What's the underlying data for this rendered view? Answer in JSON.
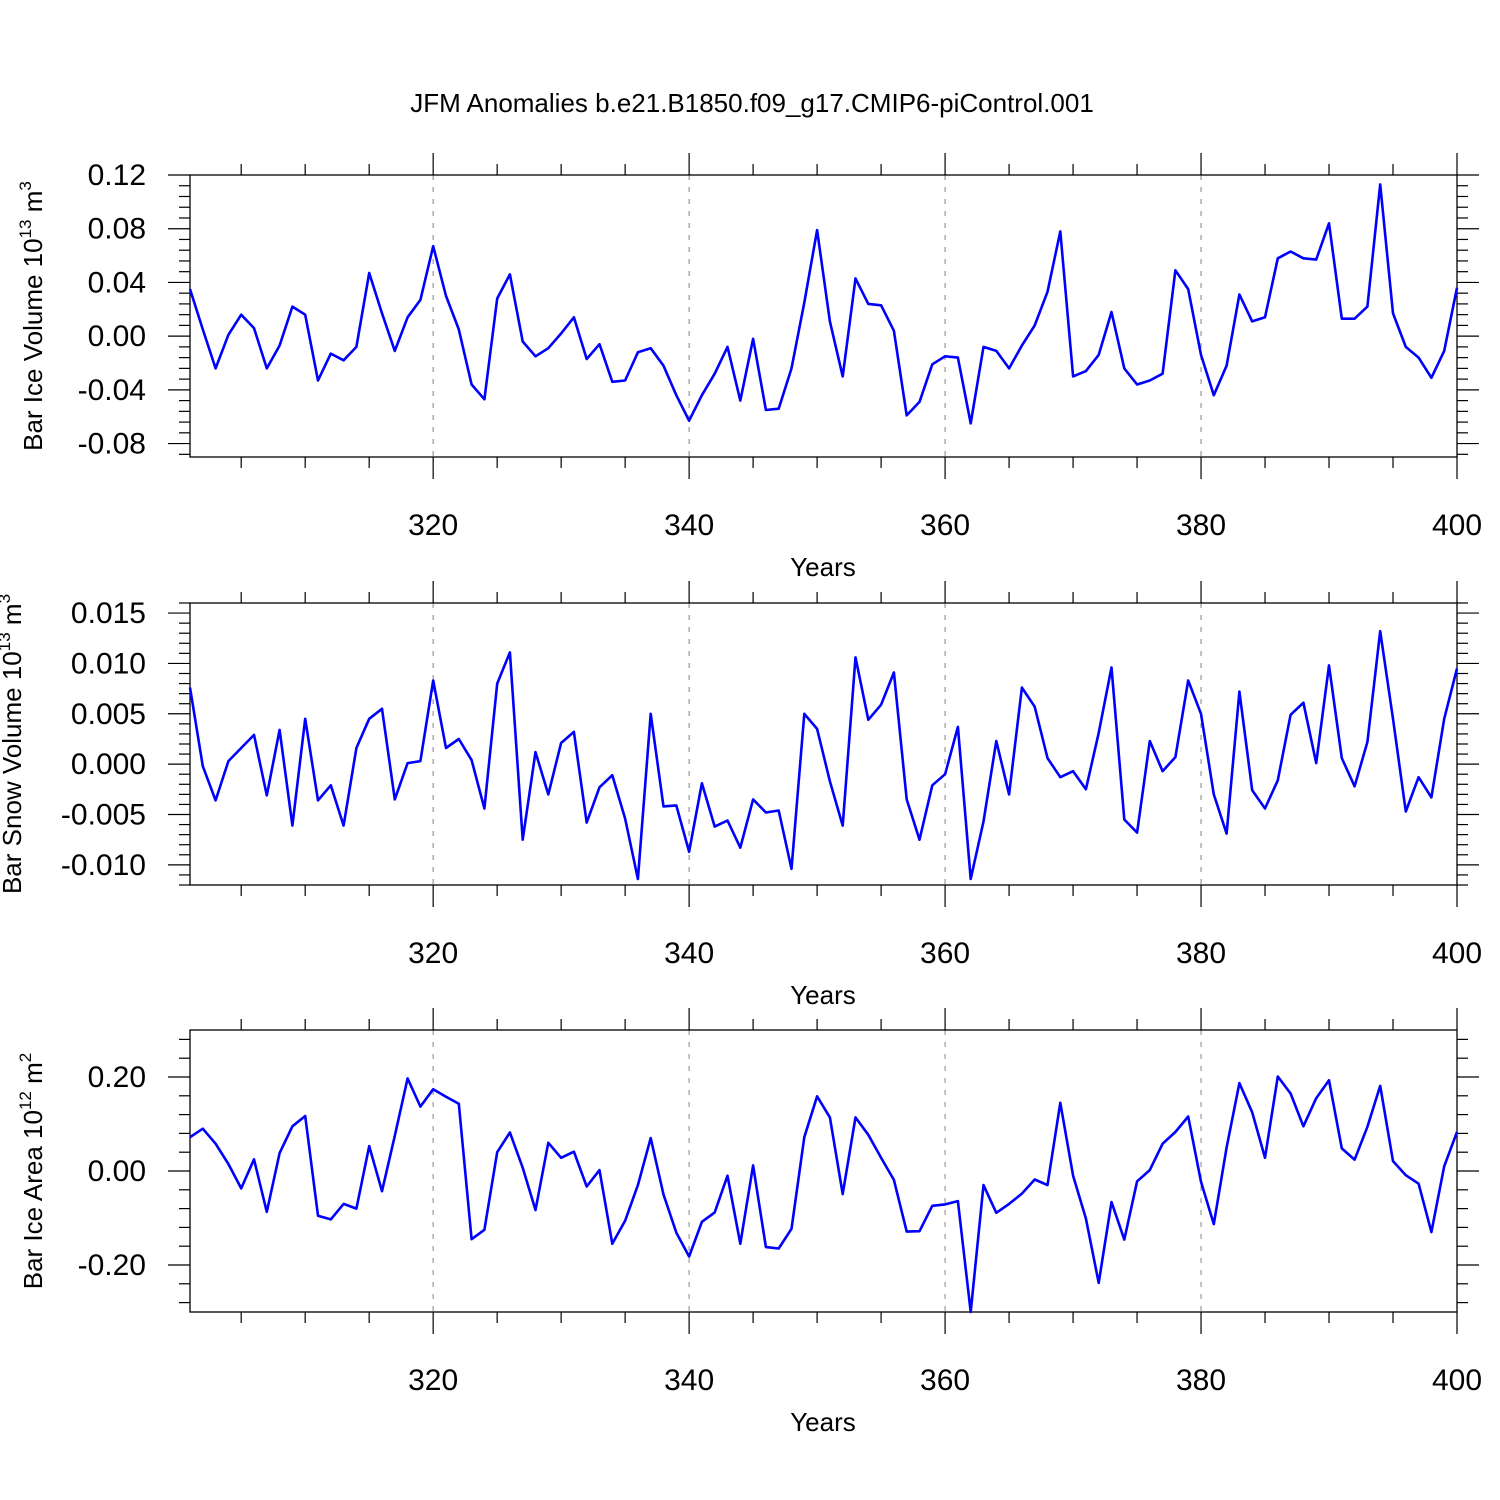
{
  "figure": {
    "title": "JFM Anomalies b.e21.B1850.f09_g17.CMIP6-piControl.001"
  },
  "colors": {
    "line": "#0000ff",
    "axis": "#000000",
    "grid": "#9a9a9a"
  },
  "chart_data": [
    {
      "type": "line",
      "ylabel": "Bar Ice Volume 10",
      "ylabel_sup": "13",
      "ylabel_unit": " m",
      "ylabel_unit_sup": "3",
      "xlabel": "Years",
      "xlim": [
        301,
        400
      ],
      "ylim": [
        -0.09,
        0.12
      ],
      "xticks": [
        320,
        340,
        360,
        380,
        400
      ],
      "xtick_labels": [
        "320",
        "340",
        "360",
        "380",
        "400"
      ],
      "yticks": [
        -0.08,
        -0.04,
        0.0,
        0.04,
        0.08,
        0.12
      ],
      "ytick_labels": [
        "-0.08",
        "-0.04",
        "0.00",
        "0.04",
        "0.08",
        "0.12"
      ],
      "grid": "vertical dashed at major x ticks",
      "series": [
        {
          "x_start": 301,
          "values": [
            0.035,
            0.005,
            -0.024,
            0.001,
            0.016,
            0.006,
            -0.024,
            -0.007,
            0.022,
            0.016,
            -0.033,
            -0.013,
            -0.018,
            -0.008,
            0.047,
            0.017,
            -0.011,
            0.014,
            0.027,
            0.067,
            0.03,
            0.005,
            -0.036,
            -0.047,
            0.028,
            0.046,
            -0.004,
            -0.015,
            -0.009,
            0.002,
            0.014,
            -0.017,
            -0.006,
            -0.034,
            -0.033,
            -0.012,
            -0.009,
            -0.022,
            -0.044,
            -0.063,
            -0.044,
            -0.028,
            -0.008,
            -0.048,
            -0.002,
            -0.055,
            -0.054,
            -0.024,
            0.025,
            0.079,
            0.011,
            -0.03,
            0.043,
            0.024,
            0.023,
            0.004,
            -0.059,
            -0.049,
            -0.021,
            -0.015,
            -0.016,
            -0.065,
            -0.008,
            -0.011,
            -0.024,
            -0.007,
            0.008,
            0.033,
            0.078,
            -0.03,
            -0.026,
            -0.014,
            0.018,
            -0.024,
            -0.036,
            -0.033,
            -0.028,
            0.049,
            0.035,
            -0.014,
            -0.044,
            -0.022,
            0.031,
            0.011,
            0.014,
            0.058,
            0.063,
            0.058,
            0.057,
            0.084,
            0.013,
            0.013,
            0.022,
            0.113,
            0.017,
            -0.008,
            -0.016,
            -0.031,
            -0.011,
            0.036
          ]
        }
      ]
    },
    {
      "type": "line",
      "ylabel": "Bar Snow Volume 10",
      "ylabel_sup": "13",
      "ylabel_unit": " m",
      "ylabel_unit_sup": "3",
      "xlabel": "Years",
      "xlim": [
        301,
        400
      ],
      "ylim": [
        -0.012,
        0.016
      ],
      "xticks": [
        320,
        340,
        360,
        380,
        400
      ],
      "xtick_labels": [
        "320",
        "340",
        "360",
        "380",
        "400"
      ],
      "yticks": [
        -0.01,
        -0.005,
        0.0,
        0.005,
        0.01,
        0.015
      ],
      "ytick_labels": [
        "-0.010",
        "-0.005",
        "0.000",
        "0.005",
        "0.010",
        "0.015"
      ],
      "grid": "vertical dashed at major x ticks",
      "series": [
        {
          "x_start": 301,
          "values": [
            0.0076,
            -0.0002,
            -0.0036,
            0.0003,
            0.0016,
            0.0029,
            -0.0031,
            0.0034,
            -0.0061,
            0.0045,
            -0.0036,
            -0.0021,
            -0.0061,
            0.0016,
            0.0045,
            0.0055,
            -0.0035,
            0.0001,
            0.0003,
            0.0083,
            0.0016,
            0.0025,
            0.0004,
            -0.0044,
            0.008,
            0.0111,
            -0.0075,
            0.0012,
            -0.003,
            0.0021,
            0.0032,
            -0.0058,
            -0.0023,
            -0.0011,
            -0.0054,
            -0.0114,
            0.005,
            -0.0042,
            -0.0041,
            -0.0087,
            -0.0019,
            -0.0062,
            -0.0056,
            -0.0083,
            -0.0035,
            -0.0048,
            -0.0046,
            -0.0104,
            0.005,
            0.0035,
            -0.0017,
            -0.0061,
            0.0106,
            0.0044,
            0.0059,
            0.0091,
            -0.0035,
            -0.0075,
            -0.0021,
            -0.001,
            0.0037,
            -0.0114,
            -0.0057,
            0.0023,
            -0.003,
            0.0076,
            0.0057,
            0.0006,
            -0.0013,
            -0.0007,
            -0.0025,
            0.0031,
            0.0096,
            -0.0055,
            -0.0068,
            0.0023,
            -0.0007,
            0.0007,
            0.0083,
            0.005,
            -0.003,
            -0.0069,
            0.0072,
            -0.0026,
            -0.0044,
            -0.0016,
            0.0049,
            0.0061,
            0.0001,
            0.0098,
            0.0006,
            -0.0022,
            0.0022,
            0.0132,
            0.0045,
            -0.0047,
            -0.0013,
            -0.0033,
            0.0045,
            0.0095
          ]
        }
      ]
    },
    {
      "type": "line",
      "ylabel": "Bar Ice Area 10",
      "ylabel_sup": "12",
      "ylabel_unit": " m",
      "ylabel_unit_sup": "2",
      "xlabel": "Years",
      "xlim": [
        301,
        400
      ],
      "ylim": [
        -0.3,
        0.3
      ],
      "xticks": [
        320,
        340,
        360,
        380,
        400
      ],
      "xtick_labels": [
        "320",
        "340",
        "360",
        "380",
        "400"
      ],
      "yticks": [
        -0.2,
        0.0,
        0.2
      ],
      "ytick_labels": [
        "-0.20",
        "0.00",
        "0.20"
      ],
      "grid": "vertical dashed at major x ticks",
      "series": [
        {
          "x_start": 301,
          "values": [
            0.072,
            0.09,
            0.058,
            0.015,
            -0.037,
            0.025,
            -0.087,
            0.038,
            0.095,
            0.117,
            -0.095,
            -0.103,
            -0.07,
            -0.08,
            0.053,
            -0.043,
            0.075,
            0.197,
            0.137,
            0.174,
            0.158,
            0.143,
            -0.145,
            -0.125,
            0.04,
            0.082,
            0.007,
            -0.083,
            0.06,
            0.028,
            0.041,
            -0.033,
            0.002,
            -0.155,
            -0.106,
            -0.03,
            0.07,
            -0.05,
            -0.131,
            -0.182,
            -0.108,
            -0.088,
            -0.01,
            -0.155,
            0.012,
            -0.162,
            -0.165,
            -0.123,
            0.072,
            0.159,
            0.114,
            -0.049,
            0.114,
            0.077,
            0.028,
            -0.019,
            -0.129,
            -0.128,
            -0.074,
            -0.071,
            -0.064,
            -0.3,
            -0.03,
            -0.089,
            -0.07,
            -0.048,
            -0.018,
            -0.03,
            0.145,
            -0.01,
            -0.101,
            -0.238,
            -0.066,
            -0.146,
            -0.022,
            0.002,
            0.058,
            0.083,
            0.116,
            -0.023,
            -0.113,
            0.05,
            0.187,
            0.125,
            0.028,
            0.201,
            0.165,
            0.095,
            0.155,
            0.193,
            0.048,
            0.024,
            0.094,
            0.181,
            0.021,
            -0.009,
            -0.027,
            -0.13,
            0.01,
            0.083
          ]
        }
      ]
    }
  ]
}
